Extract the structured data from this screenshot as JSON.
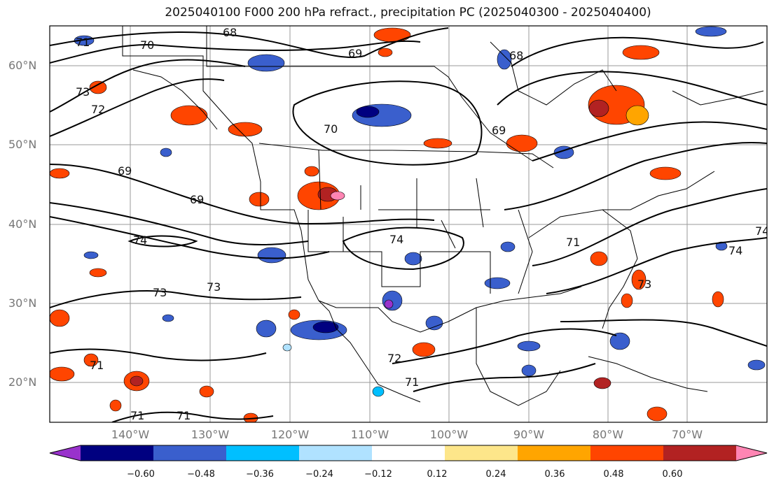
{
  "title": "2025040100 F000 200 hPa refract., precipitation PC (2025040300 - 2025040400)",
  "lat_labels": [
    "60°N",
    "50°N",
    "40°N",
    "30°N",
    "20°N"
  ],
  "lon_labels": [
    "140°W",
    "130°W",
    "120°W",
    "110°W",
    "100°W",
    "90°W",
    "80°W",
    "70°W"
  ],
  "colorbar": {
    "colors": [
      "#9932cc",
      "#000080",
      "#3a5fcd",
      "#00bfff",
      "#b0e2ff",
      "#ffffff",
      "#fde68a",
      "#ffa500",
      "#ff4500",
      "#b22222",
      "#ff85b3"
    ],
    "tick_labels": [
      "−0.60",
      "−0.48",
      "−0.36",
      "−0.24",
      "−0.12",
      "0.12",
      "0.24",
      "0.36",
      "0.48",
      "0.60"
    ]
  },
  "contour_labels": [
    "71",
    "68",
    "70",
    "69",
    "68",
    "73",
    "72",
    "70",
    "69",
    "69",
    "69",
    "74",
    "74",
    "71",
    "74",
    "73",
    "73",
    "73",
    "72",
    "71",
    "71",
    "71",
    "71",
    "74"
  ],
  "map": {
    "projection": "equirectangular",
    "lon_range": [
      -148,
      -62
    ],
    "lat_range": [
      15,
      65
    ],
    "grid": true,
    "field": "precipitation PC",
    "contours": "200 hPa refractivity"
  }
}
